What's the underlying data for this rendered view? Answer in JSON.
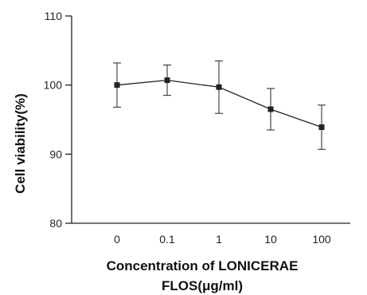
{
  "chart_data": {
    "type": "line",
    "title": "",
    "xlabel": "Concentration of LONICERAE FLOS(μg/ml)",
    "xlabel_lines": [
      "Concentration of LONICERAE",
      "FLOS(μg/ml)"
    ],
    "ylabel": "Cell viability(%)",
    "categories": [
      "0",
      "0.1",
      "1",
      "10",
      "100"
    ],
    "series": [
      {
        "values": [
          100.0,
          100.7,
          99.7,
          96.5,
          93.9
        ],
        "error": [
          3.2,
          2.2,
          3.8,
          3.0,
          3.2
        ]
      }
    ],
    "ylim": [
      80,
      110
    ],
    "yticks": [
      "80",
      "90",
      "100",
      "110"
    ],
    "grid": false,
    "legend": "none",
    "colors": {
      "line": "#222222",
      "marker": "#222222",
      "axis": "#222222"
    }
  }
}
